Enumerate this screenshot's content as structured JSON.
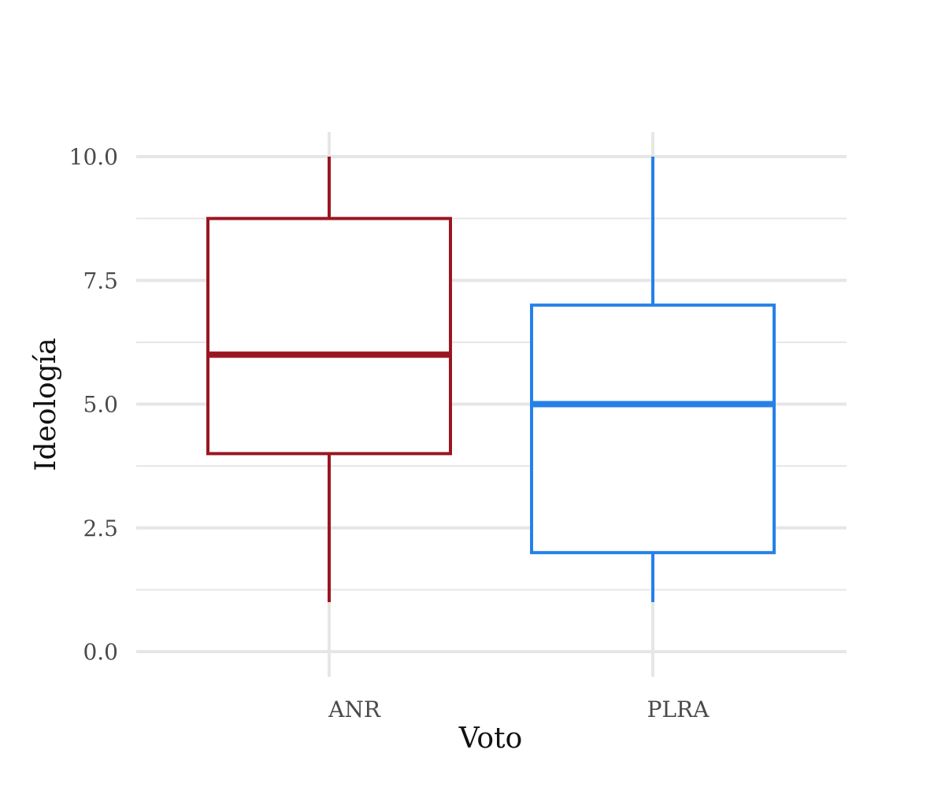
{
  "chart_data": {
    "type": "box",
    "xlabel": "Voto",
    "ylabel": "Ideología",
    "ylim": [
      0,
      10
    ],
    "y_ticks": [
      0.0,
      2.5,
      5.0,
      7.5,
      10.0
    ],
    "y_tick_labels": [
      "0.0",
      "2.5",
      "5.0",
      "7.5",
      "10.0"
    ],
    "grid": true,
    "legend": "none",
    "categories": [
      "ANR",
      "PLRA"
    ],
    "boxes": [
      {
        "category": "ANR",
        "whisker_low": 1.0,
        "q1": 4.0,
        "median": 6.0,
        "q3": 8.75,
        "whisker_high": 10.0,
        "color": "#9b1620"
      },
      {
        "category": "PLRA",
        "whisker_low": 1.0,
        "q1": 2.0,
        "median": 5.0,
        "q3": 7.0,
        "whisker_high": 10.0,
        "color": "#2680e8"
      }
    ],
    "grid_color": "#e6e6e6"
  }
}
